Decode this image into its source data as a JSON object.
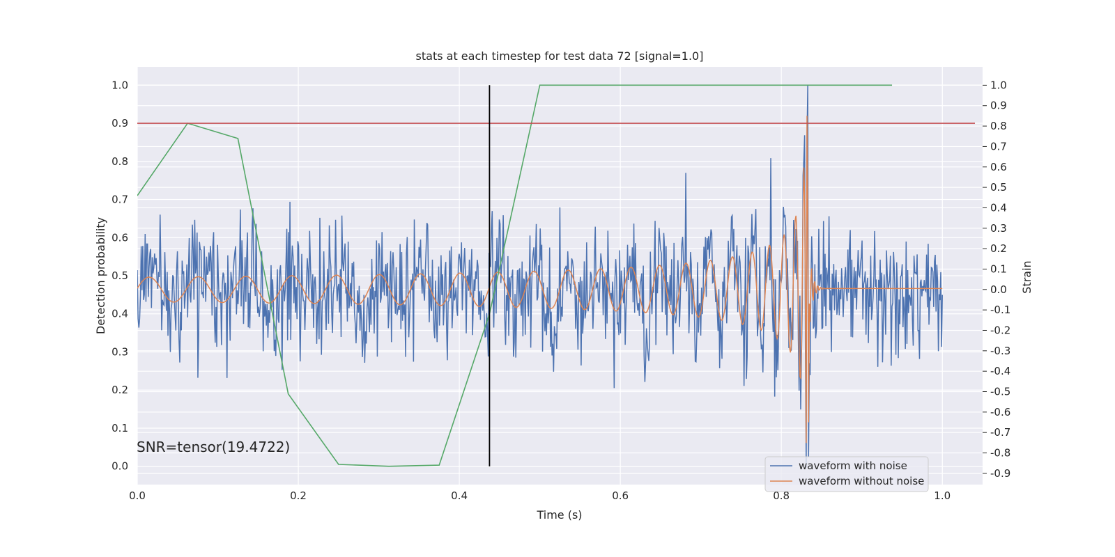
{
  "chart_data": {
    "type": "line",
    "title": "stats at each timestep for test data 72 [signal=1.0]",
    "xlabel": "Time (s)",
    "ylabel_left": "Detection probability",
    "ylabel_right": "Strain",
    "xlim": [
      0.0,
      1.05
    ],
    "ylim_left": [
      -0.048,
      1.048
    ],
    "ylim_right": [
      -0.955,
      1.09
    ],
    "x_ticks": [
      "0.0",
      "0.2",
      "0.4",
      "0.6",
      "0.8",
      "1.0"
    ],
    "y_left_ticks": [
      "0.0",
      "0.1",
      "0.2",
      "0.3",
      "0.4",
      "0.5",
      "0.6",
      "0.7",
      "0.8",
      "0.9",
      "1.0"
    ],
    "y_right_ticks": [
      "-0.9",
      "-0.8",
      "-0.7",
      "-0.6",
      "-0.5",
      "-0.4",
      "-0.3",
      "-0.2",
      "-0.1",
      "0.0",
      "0.1",
      "0.2",
      "0.3",
      "0.4",
      "0.5",
      "0.6",
      "0.7",
      "0.8",
      "0.9",
      "1.0"
    ],
    "grid": true,
    "legend_position": "lower-right",
    "annotation": "SNR=tensor(19.4722)",
    "threshold": {
      "axis": "left",
      "y": 0.9,
      "color": "#c44e52"
    },
    "vertical_marker": {
      "x": 0.4375,
      "y_range": [
        0.0,
        1.0
      ],
      "color": "#000000"
    },
    "detection_probability": {
      "axis": "left",
      "color": "#55a868",
      "x": [
        0.0,
        0.0625,
        0.125,
        0.1875,
        0.25,
        0.3125,
        0.375,
        0.4375,
        0.5,
        0.5625,
        0.625,
        0.6875,
        0.75,
        0.8125,
        0.875,
        0.9375
      ],
      "y": [
        0.71,
        0.9,
        0.86,
        0.19,
        0.005,
        0.0,
        0.003,
        0.4,
        1.0,
        1.0,
        1.0,
        1.0,
        1.0,
        1.0,
        1.0,
        1.0
      ]
    },
    "series": [
      {
        "name": "waveform with noise",
        "axis": "right",
        "color": "#4c72b0",
        "x_range": [
          0.0,
          1.0
        ],
        "n_points": 1024,
        "noise_amplitude": 0.2,
        "peak": {
          "x": 0.833,
          "value_range": [
            -0.82,
            1.0
          ]
        }
      },
      {
        "name": "waveform without noise",
        "axis": "right",
        "color": "#dd8452",
        "x_range": [
          0.0,
          1.0
        ],
        "n_points": 1024,
        "description": "inspiral chirp with growing amplitude and frequency, merger at t=0.833 s, flat ringdown to 0.0 after",
        "start_amplitude": 0.06,
        "merger_peak": {
          "x": 0.833,
          "value_range": [
            -0.65,
            0.85
          ]
        }
      }
    ]
  }
}
